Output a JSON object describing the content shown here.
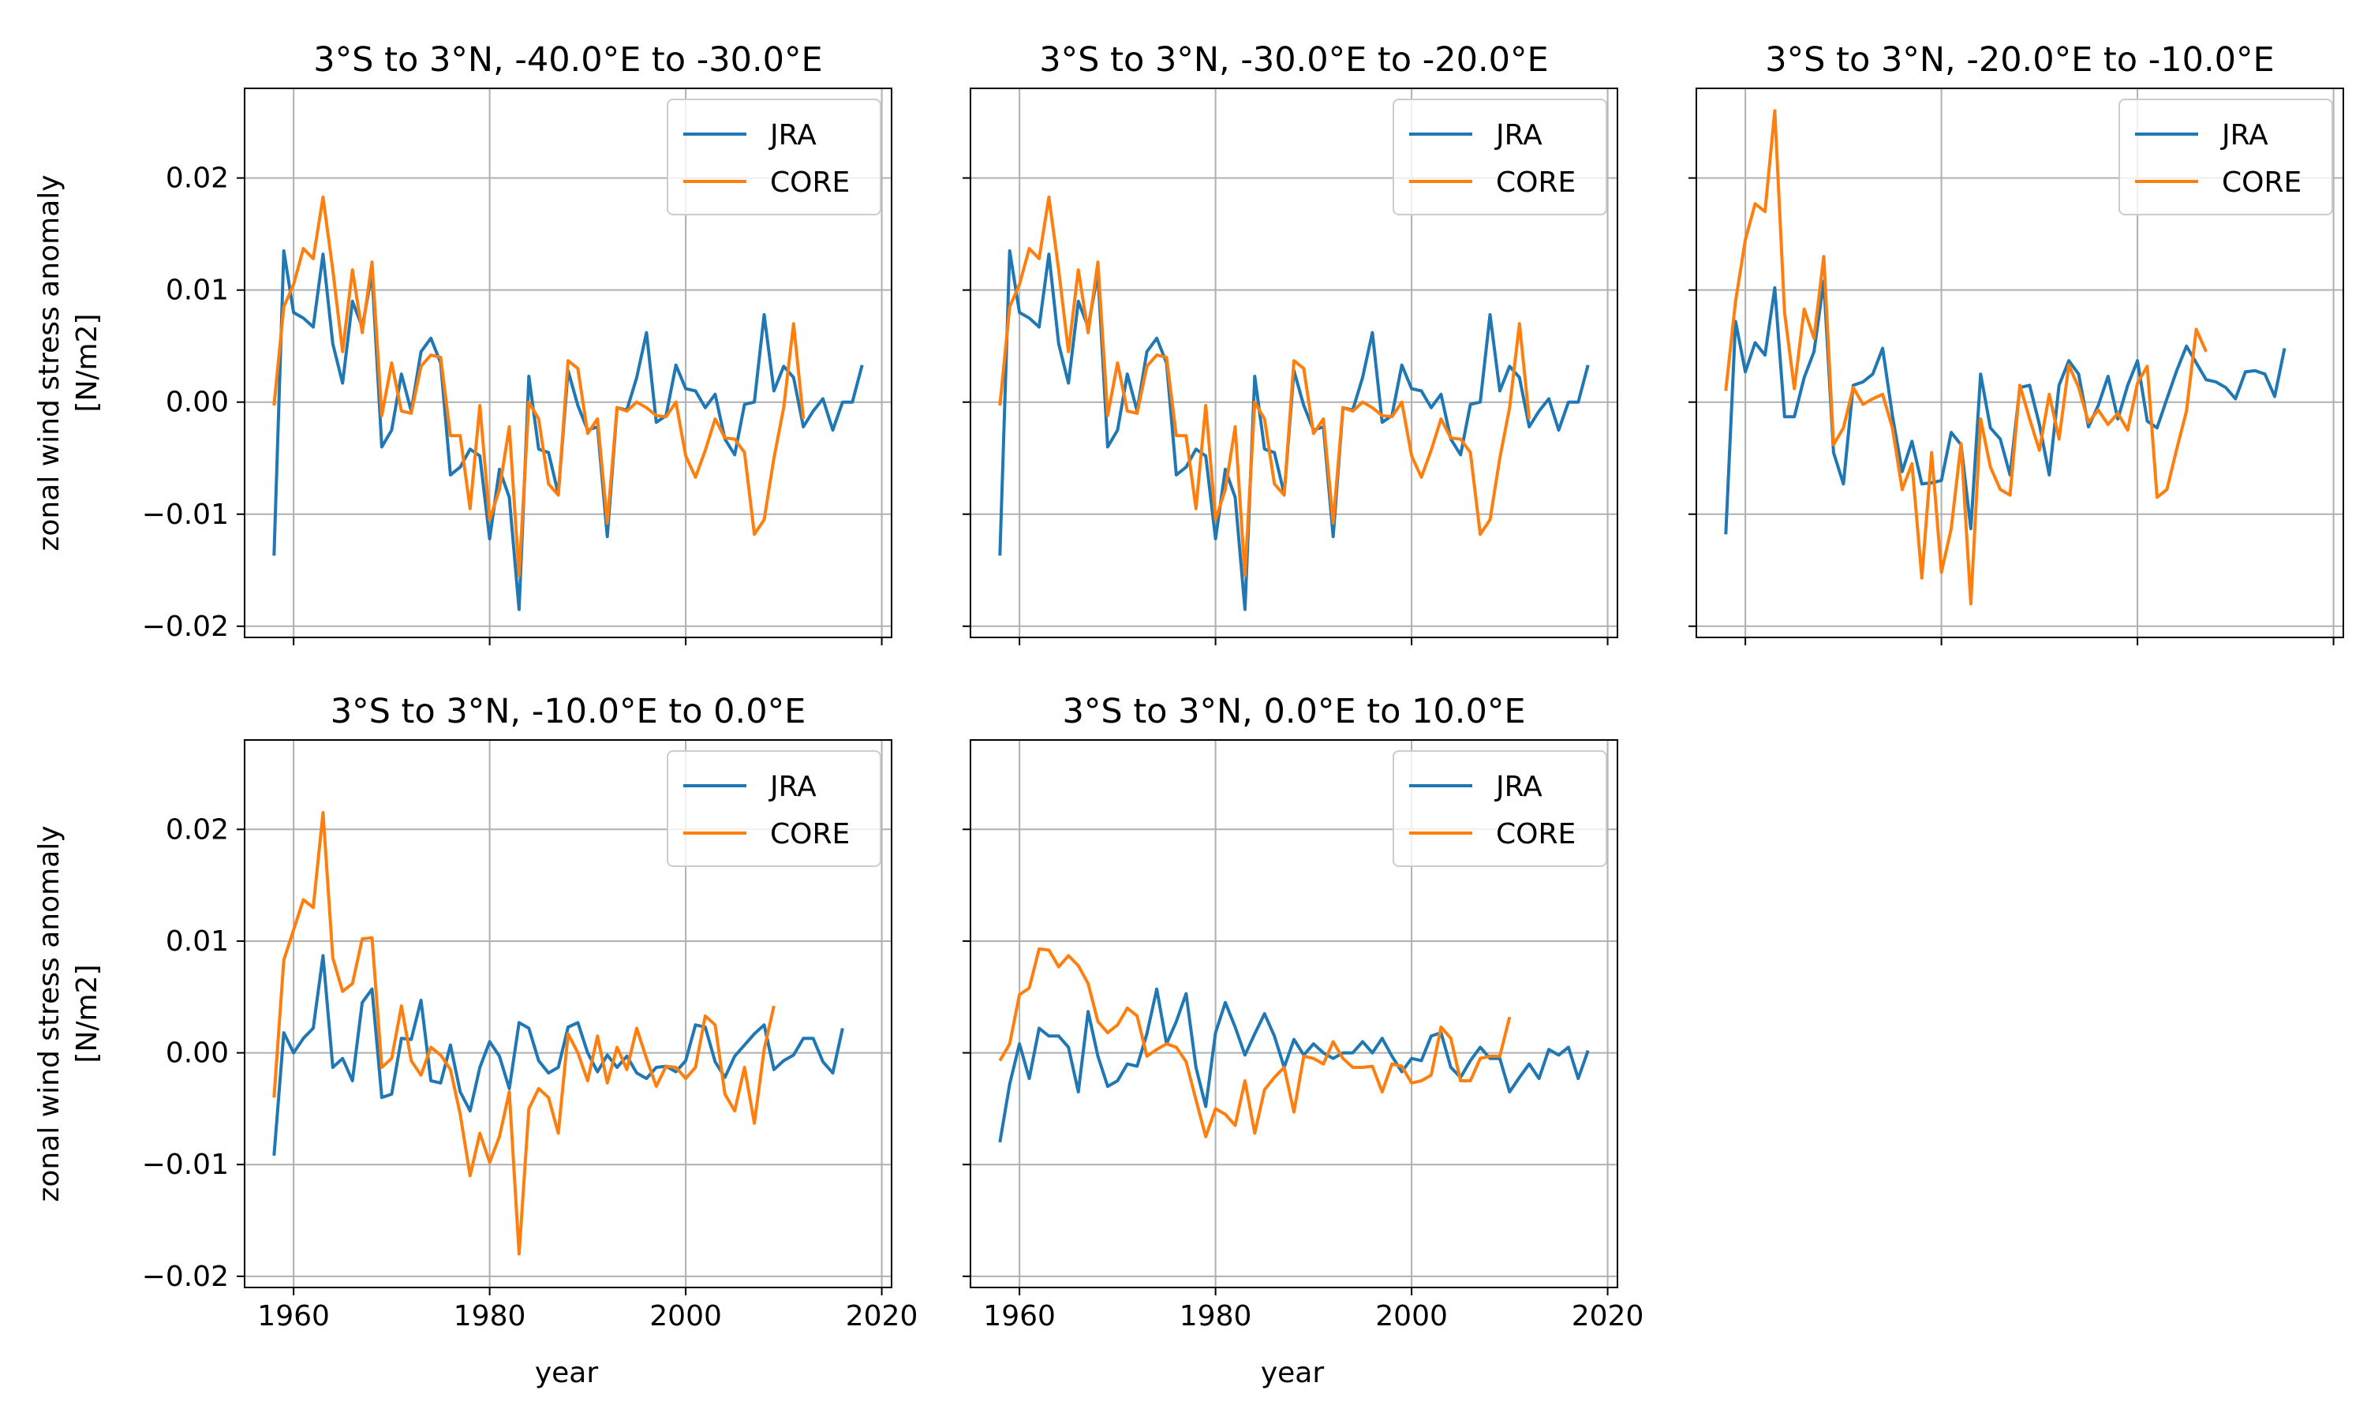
{
  "figure": {
    "shared_ylabel": "zonal wind stress anomaly",
    "shared_ylabel_unit": "[N/m2]",
    "shared_xlabel": "year"
  },
  "chart_data": [
    {
      "type": "line",
      "title": "3°S to 3°N, -40.0°E to -30.0°E",
      "xlabel": "",
      "ylabel": "zonal wind stress anomaly [N/m2]",
      "xlim": [
        1955,
        2021
      ],
      "ylim": [
        -0.021,
        0.028
      ],
      "xticks": [
        1960,
        1980,
        2000,
        2020
      ],
      "yticks": [
        -0.02,
        -0.01,
        0.0,
        0.01,
        0.02
      ],
      "ytick_labels": [
        "−0.02",
        "−0.01",
        "0.00",
        "0.01",
        "0.02"
      ],
      "grid": true,
      "legend": "top-right",
      "series": [
        {
          "name": "JRA",
          "color": "#1f77b4",
          "x_start": 1958,
          "values": [
            -0.0137,
            0.0135,
            0.008,
            0.0075,
            0.0067,
            0.0132,
            0.0052,
            0.0017,
            0.009,
            0.0067,
            0.0115,
            -0.004,
            -0.0025,
            0.0025,
            -0.0008,
            0.0045,
            0.0057,
            0.0035,
            -0.0065,
            -0.0058,
            -0.0042,
            -0.0048,
            -0.0122,
            -0.006,
            -0.0085,
            -0.0185,
            0.0023,
            -0.0042,
            -0.0045,
            -0.0082,
            0.0028,
            -0.0003,
            -0.0025,
            -0.0022,
            -0.012,
            -0.0005,
            -0.0007,
            0.0022,
            0.0062,
            -0.0018,
            -0.0012,
            0.0033,
            0.0012,
            0.001,
            -0.0005,
            0.0007,
            -0.0033,
            -0.0047,
            -0.0002,
            0.0,
            0.0078,
            0.001,
            0.0032,
            0.0022,
            -0.0022,
            -0.0008,
            0.0003,
            -0.0025,
            0.0,
            0.0,
            0.0033
          ]
        },
        {
          "name": "CORE",
          "color": "#ff7f0e",
          "x_start": 1958,
          "values": [
            -0.0003,
            0.0085,
            0.0105,
            0.0137,
            0.0128,
            0.0183,
            0.0118,
            0.0045,
            0.0118,
            0.0062,
            0.0125,
            -0.0012,
            0.0035,
            -0.0008,
            -0.001,
            0.0032,
            0.0042,
            0.004,
            -0.003,
            -0.003,
            -0.0095,
            -0.0003,
            -0.0105,
            -0.0078,
            -0.0022,
            -0.0155,
            0.0,
            -0.0015,
            -0.0073,
            -0.0083,
            0.0037,
            0.003,
            -0.0028,
            -0.0015,
            -0.0108,
            -0.0005,
            -0.0008,
            0.0,
            -0.0005,
            -0.0012,
            -0.0013,
            0.0,
            -0.0048,
            -0.0067,
            -0.0043,
            -0.0015,
            -0.0032,
            -0.0033,
            -0.0045,
            -0.0118,
            -0.0105,
            -0.005,
            -0.0005,
            0.007,
            -0.0015
          ]
        }
      ]
    },
    {
      "type": "line",
      "title": "3°S to 3°N, -30.0°E to -20.0°E",
      "xlabel": "",
      "ylabel": "",
      "xlim": [
        1955,
        2021
      ],
      "ylim": [
        -0.021,
        0.028
      ],
      "xticks": [
        1960,
        1980,
        2000,
        2020
      ],
      "yticks": [
        -0.02,
        -0.01,
        0.0,
        0.01,
        0.02
      ],
      "grid": true,
      "legend": "top-right",
      "series": [
        {
          "name": "JRA",
          "color": "#1f77b4",
          "x_start": 1958,
          "values": [
            -0.0137,
            0.0135,
            0.008,
            0.0075,
            0.0067,
            0.0132,
            0.0052,
            0.0017,
            0.009,
            0.0067,
            0.0115,
            -0.004,
            -0.0025,
            0.0025,
            -0.0008,
            0.0045,
            0.0057,
            0.0035,
            -0.0065,
            -0.0058,
            -0.0042,
            -0.0048,
            -0.0122,
            -0.006,
            -0.0085,
            -0.0185,
            0.0023,
            -0.0042,
            -0.0045,
            -0.0082,
            0.0028,
            -0.0003,
            -0.0025,
            -0.0022,
            -0.012,
            -0.0005,
            -0.0007,
            0.0022,
            0.0062,
            -0.0018,
            -0.0012,
            0.0033,
            0.0012,
            0.001,
            -0.0005,
            0.0007,
            -0.0033,
            -0.0047,
            -0.0002,
            0.0,
            0.0078,
            0.001,
            0.0032,
            0.0022,
            -0.0022,
            -0.0008,
            0.0003,
            -0.0025,
            0.0,
            0.0,
            0.0033
          ]
        },
        {
          "name": "CORE",
          "color": "#ff7f0e",
          "x_start": 1958,
          "values": [
            -0.0003,
            0.0085,
            0.0105,
            0.0137,
            0.0128,
            0.0183,
            0.0118,
            0.0045,
            0.0118,
            0.0062,
            0.0125,
            -0.0012,
            0.0035,
            -0.0008,
            -0.001,
            0.0032,
            0.0042,
            0.004,
            -0.003,
            -0.003,
            -0.0095,
            -0.0003,
            -0.0105,
            -0.0078,
            -0.0022,
            -0.0155,
            0.0,
            -0.0015,
            -0.0073,
            -0.0083,
            0.0037,
            0.003,
            -0.0028,
            -0.0015,
            -0.0108,
            -0.0005,
            -0.0008,
            0.0,
            -0.0005,
            -0.0012,
            -0.0013,
            0.0,
            -0.0048,
            -0.0067,
            -0.0043,
            -0.0015,
            -0.0032,
            -0.0033,
            -0.0045,
            -0.0118,
            -0.0105,
            -0.005,
            -0.0005,
            0.007,
            -0.0015
          ]
        }
      ]
    },
    {
      "type": "line",
      "title": "3°S to 3°N, -20.0°E to -10.0°E",
      "xlabel": "",
      "ylabel": "",
      "xlim": [
        1955,
        2021
      ],
      "ylim": [
        -0.021,
        0.028
      ],
      "xticks": [
        1960,
        1980,
        2000,
        2020
      ],
      "yticks": [
        -0.02,
        -0.01,
        0.0,
        0.01,
        0.02
      ],
      "grid": true,
      "legend": "top-right",
      "series": [
        {
          "name": "JRA",
          "color": "#1f77b4",
          "x_start": 1958,
          "values": [
            -0.0118,
            0.0072,
            0.0027,
            0.0053,
            0.0042,
            0.0102,
            -0.0013,
            -0.0013,
            0.0022,
            0.0045,
            0.0108,
            -0.0045,
            -0.0073,
            0.0015,
            0.0018,
            0.0025,
            0.0048,
            -0.0012,
            -0.0062,
            -0.0035,
            -0.0073,
            -0.0072,
            -0.007,
            -0.0027,
            -0.0038,
            -0.0113,
            0.0025,
            -0.0023,
            -0.0033,
            -0.0065,
            0.0013,
            0.0015,
            -0.002,
            -0.0065,
            0.0015,
            0.0037,
            0.0025,
            -0.0022,
            -0.0003,
            0.0023,
            -0.0015,
            0.0015,
            0.0037,
            -0.0017,
            -0.0023,
            0.0003,
            0.0028,
            0.005,
            0.0035,
            0.002,
            0.0018,
            0.0013,
            0.0003,
            0.0027,
            0.0028,
            0.0025,
            0.0005,
            0.0048
          ]
        },
        {
          "name": "CORE",
          "color": "#ff7f0e",
          "x_start": 1958,
          "values": [
            0.001,
            0.009,
            0.0145,
            0.0177,
            0.017,
            0.026,
            0.008,
            0.0012,
            0.0083,
            0.0057,
            0.013,
            -0.0038,
            -0.0023,
            0.0013,
            -0.0002,
            0.0003,
            0.0007,
            -0.0023,
            -0.0078,
            -0.0055,
            -0.0157,
            -0.0045,
            -0.0152,
            -0.0113,
            -0.0037,
            -0.018,
            -0.0015,
            -0.0058,
            -0.0078,
            -0.0083,
            0.0015,
            -0.0015,
            -0.0043,
            0.0007,
            -0.0033,
            0.0033,
            0.0013,
            -0.0018,
            -0.0007,
            -0.002,
            -0.001,
            -0.0025,
            0.0017,
            0.0032,
            -0.0085,
            -0.0078,
            -0.0042,
            -0.0008,
            0.0065,
            0.0045
          ]
        }
      ]
    },
    {
      "type": "line",
      "title": "3°S to 3°N, -10.0°E to 0.0°E",
      "xlabel": "year",
      "ylabel": "zonal wind stress anomaly [N/m2]",
      "xlim": [
        1955,
        2021
      ],
      "ylim": [
        -0.021,
        0.028
      ],
      "xticks": [
        1960,
        1980,
        2000,
        2020
      ],
      "yticks": [
        -0.02,
        -0.01,
        0.0,
        0.01,
        0.02
      ],
      "ytick_labels": [
        "−0.02",
        "−0.01",
        "0.00",
        "0.01",
        "0.02"
      ],
      "grid": true,
      "legend": "top-right",
      "series": [
        {
          "name": "JRA",
          "color": "#1f77b4",
          "x_start": 1958,
          "values": [
            -0.0092,
            0.0018,
            0.0,
            0.0013,
            0.0022,
            0.0087,
            -0.0013,
            -0.0005,
            -0.0025,
            0.0045,
            0.0057,
            -0.004,
            -0.0037,
            0.0013,
            0.0012,
            0.0047,
            -0.0025,
            -0.0027,
            0.0007,
            -0.0035,
            -0.0052,
            -0.0013,
            0.001,
            -0.0003,
            -0.0032,
            0.0027,
            0.0022,
            -0.0007,
            -0.0018,
            -0.0013,
            0.0023,
            0.0027,
            0.0,
            -0.0017,
            -0.0002,
            -0.0013,
            -0.0003,
            -0.0018,
            -0.0023,
            -0.0013,
            -0.0012,
            -0.0017,
            -0.0007,
            0.0025,
            0.0023,
            -0.0008,
            -0.0022,
            -0.0003,
            0.0007,
            0.0017,
            0.0025,
            -0.0015,
            -0.0007,
            -0.0002,
            0.0013,
            0.0013,
            -0.0008,
            -0.0018,
            0.0022
          ]
        },
        {
          "name": "CORE",
          "color": "#ff7f0e",
          "x_start": 1958,
          "values": [
            -0.004,
            0.0083,
            0.011,
            0.0137,
            0.013,
            0.0215,
            0.0085,
            0.0055,
            0.0062,
            0.0102,
            0.0103,
            -0.0013,
            -0.0005,
            0.0042,
            -0.0007,
            -0.002,
            0.0005,
            -0.0002,
            -0.0015,
            -0.0055,
            -0.011,
            -0.0072,
            -0.0098,
            -0.0075,
            -0.0035,
            -0.018,
            -0.005,
            -0.0032,
            -0.004,
            -0.0072,
            0.0017,
            0.0,
            -0.0025,
            0.0015,
            -0.0027,
            0.0005,
            -0.0015,
            0.0022,
            -0.0005,
            -0.003,
            -0.0012,
            -0.0013,
            -0.0023,
            -0.0013,
            0.0033,
            0.0025,
            -0.0037,
            -0.0052,
            -0.0013,
            -0.0063,
            0.0003,
            0.0042
          ]
        }
      ]
    },
    {
      "type": "line",
      "title": "3°S to 3°N, 0.0°E to 10.0°E",
      "xlabel": "year",
      "ylabel": "",
      "xlim": [
        1955,
        2021
      ],
      "ylim": [
        -0.021,
        0.028
      ],
      "xticks": [
        1960,
        1980,
        2000,
        2020
      ],
      "yticks": [
        -0.02,
        -0.01,
        0.0,
        0.01,
        0.02
      ],
      "grid": true,
      "legend": "top-right",
      "series": [
        {
          "name": "JRA",
          "color": "#1f77b4",
          "x_start": 1958,
          "values": [
            -0.008,
            -0.0028,
            0.0008,
            -0.0023,
            0.0022,
            0.0015,
            0.0015,
            0.0005,
            -0.0035,
            0.0037,
            -0.0003,
            -0.003,
            -0.0025,
            -0.001,
            -0.0012,
            0.0017,
            0.0057,
            0.0008,
            0.0028,
            0.0053,
            -0.0013,
            -0.0048,
            0.0018,
            0.0045,
            0.0023,
            -0.0002,
            0.0017,
            0.0035,
            0.0015,
            -0.0013,
            0.0012,
            -0.0002,
            0.0008,
            0.0,
            -0.0005,
            0.0,
            0.0,
            0.001,
            0.0,
            0.0013,
            -0.0003,
            -0.0017,
            -0.0005,
            -0.0007,
            0.0015,
            0.0018,
            -0.0013,
            -0.0022,
            -0.0007,
            0.0005,
            -0.0005,
            -0.0005,
            -0.0035,
            -0.0022,
            -0.001,
            -0.0023,
            0.0003,
            -0.0002,
            0.0005,
            -0.0023,
            0.0002
          ]
        },
        {
          "name": "CORE",
          "color": "#ff7f0e",
          "x_start": 1958,
          "values": [
            -0.0007,
            0.0008,
            0.0052,
            0.0058,
            0.0093,
            0.0092,
            0.0077,
            0.0087,
            0.0078,
            0.0062,
            0.0028,
            0.0018,
            0.0025,
            0.004,
            0.0033,
            -0.0003,
            0.0003,
            0.0008,
            0.0005,
            -0.0008,
            -0.0042,
            -0.0075,
            -0.005,
            -0.0055,
            -0.0065,
            -0.0025,
            -0.0072,
            -0.0033,
            -0.0022,
            -0.0013,
            -0.0053,
            -0.0003,
            -0.0005,
            -0.001,
            0.001,
            -0.0005,
            -0.0013,
            -0.0013,
            -0.0012,
            -0.0035,
            -0.001,
            -0.0012,
            -0.0027,
            -0.0025,
            -0.002,
            0.0023,
            0.0013,
            -0.0025,
            -0.0025,
            -0.0005,
            -0.0003,
            -0.0003,
            0.0032
          ]
        }
      ]
    }
  ]
}
